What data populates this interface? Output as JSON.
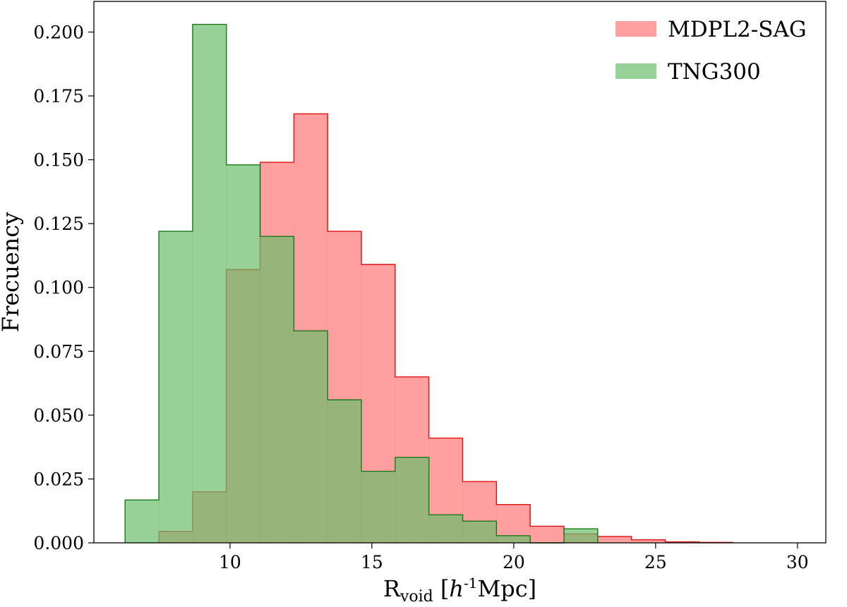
{
  "chart_data": {
    "type": "histogram",
    "xlabel": "R",
    "xlabel_sub": "void",
    "xlabel_unit_pre": " [",
    "xlabel_h": "h",
    "xlabel_exp": "-1",
    "xlabel_unit_post": "Mpc]",
    "ylabel": "Frecuency",
    "xlim": [
      5.2,
      31.0
    ],
    "ylim": [
      0.0,
      0.212
    ],
    "xticks": [
      10,
      15,
      20,
      25,
      30
    ],
    "xtick_labels": [
      "10",
      "15",
      "20",
      "25",
      "30"
    ],
    "yticks": [
      0.0,
      0.025,
      0.05,
      0.075,
      0.1,
      0.125,
      0.15,
      0.175,
      0.2
    ],
    "ytick_labels": [
      "0.000",
      "0.025",
      "0.050",
      "0.075",
      "0.100",
      "0.125",
      "0.150",
      "0.175",
      "0.200"
    ],
    "grid": false,
    "legend_position": "top-right",
    "series": [
      {
        "name": "MDPL2-SAG",
        "fill": "#ff7f7f",
        "fill_opacity": 0.75,
        "edge": "#dd1111",
        "bin_edges": [
          7.49,
          8.68,
          9.87,
          11.06,
          12.25,
          13.44,
          14.63,
          15.82,
          17.01,
          18.2,
          19.39,
          20.58,
          21.77,
          22.96,
          24.15,
          25.34,
          26.53,
          27.72
        ],
        "values": [
          0.0045,
          0.02,
          0.107,
          0.149,
          0.168,
          0.122,
          0.109,
          0.065,
          0.041,
          0.024,
          0.015,
          0.0065,
          0.0035,
          0.0025,
          0.0012,
          0.0004,
          0.0002
        ]
      },
      {
        "name": "TNG300",
        "fill": "#6bbd6b",
        "fill_opacity": 0.7,
        "edge": "#1a7a1a",
        "bin_edges": [
          6.3,
          7.49,
          8.68,
          9.87,
          11.06,
          12.25,
          13.44,
          14.63,
          15.82,
          17.01,
          18.2,
          19.39,
          20.58,
          21.77,
          22.96
        ],
        "values": [
          0.0168,
          0.122,
          0.203,
          0.148,
          0.12,
          0.083,
          0.056,
          0.028,
          0.0335,
          0.011,
          0.0085,
          0.0028,
          0.0,
          0.0055
        ]
      }
    ]
  }
}
